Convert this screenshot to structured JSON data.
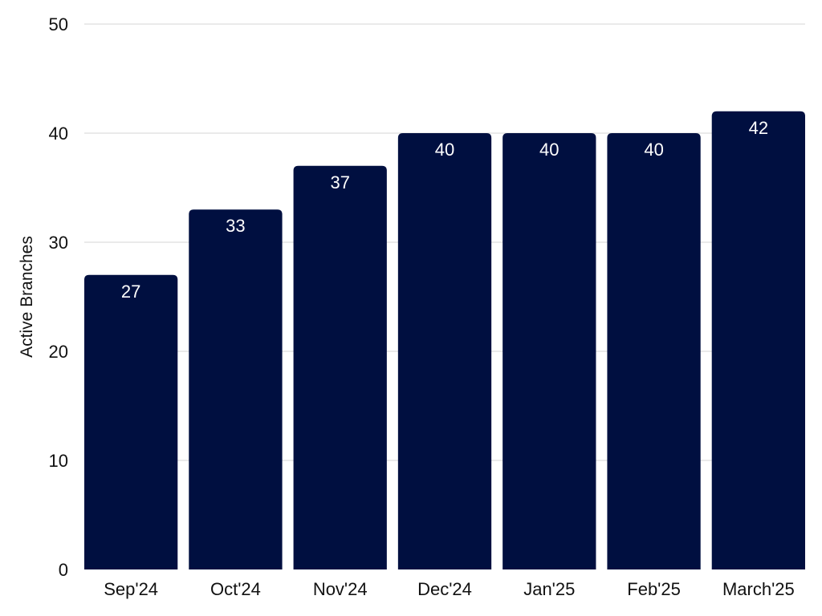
{
  "chart_data": {
    "type": "bar",
    "title": "",
    "xlabel": "",
    "ylabel": "Active Branches",
    "categories": [
      "Sep'24",
      "Oct'24",
      "Nov'24",
      "Dec'24",
      "Jan'25",
      "Feb'25",
      "March'25"
    ],
    "values": [
      27,
      33,
      37,
      40,
      40,
      40,
      42
    ],
    "ylim": [
      0,
      50
    ],
    "yticks": [
      "0",
      "10",
      "20",
      "30",
      "40",
      "50"
    ],
    "grid": true,
    "legend": "none",
    "colors": {
      "bar": "#000f40",
      "grid": "#d4d4d4",
      "bar_label": "#ffffff",
      "text": "#111111"
    }
  }
}
